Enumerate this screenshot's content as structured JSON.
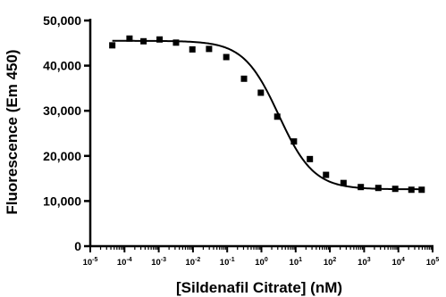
{
  "chart_data": {
    "type": "scatter",
    "title": "",
    "xlabel": "[Sildenafil Citrate] (nM)",
    "ylabel": "Fluorescence (Em 450)",
    "xscale": "log",
    "xlim": [
      1e-05,
      100000
    ],
    "ylim": [
      0,
      50000
    ],
    "x_ticks": [
      {
        "value": 1e-05,
        "base": "10",
        "exp": "-5"
      },
      {
        "value": 0.0001,
        "base": "10",
        "exp": "-4"
      },
      {
        "value": 0.001,
        "base": "10",
        "exp": "-3"
      },
      {
        "value": 0.01,
        "base": "10",
        "exp": "-2"
      },
      {
        "value": 0.1,
        "base": "10",
        "exp": "-1"
      },
      {
        "value": 1,
        "base": "10",
        "exp": "0"
      },
      {
        "value": 10,
        "base": "10",
        "exp": "1"
      },
      {
        "value": 100,
        "base": "10",
        "exp": "2"
      },
      {
        "value": 1000,
        "base": "10",
        "exp": "3"
      },
      {
        "value": 10000,
        "base": "10",
        "exp": "4"
      },
      {
        "value": 100000,
        "base": "10",
        "exp": "5"
      }
    ],
    "y_ticks": [
      {
        "value": 0,
        "label": "0"
      },
      {
        "value": 10000,
        "label": "10,000"
      },
      {
        "value": 20000,
        "label": "20,000"
      },
      {
        "value": 30000,
        "label": "30,000"
      },
      {
        "value": 40000,
        "label": "40,000"
      },
      {
        "value": 50000,
        "label": "50,000"
      }
    ],
    "grid": false,
    "marker": "square",
    "color": "#000000",
    "points": [
      {
        "x": 4.4e-05,
        "y": 44500
      },
      {
        "x": 0.00014,
        "y": 46000
      },
      {
        "x": 0.00036,
        "y": 45400
      },
      {
        "x": 0.00106,
        "y": 45800
      },
      {
        "x": 0.0032,
        "y": 45100
      },
      {
        "x": 0.0096,
        "y": 43600
      },
      {
        "x": 0.0295,
        "y": 43700
      },
      {
        "x": 0.094,
        "y": 41900
      },
      {
        "x": 0.31,
        "y": 37100
      },
      {
        "x": 0.96,
        "y": 34000
      },
      {
        "x": 2.9,
        "y": 28700
      },
      {
        "x": 8.9,
        "y": 23200
      },
      {
        "x": 26,
        "y": 19300
      },
      {
        "x": 77,
        "y": 15800
      },
      {
        "x": 250,
        "y": 14000
      },
      {
        "x": 800,
        "y": 13100
      },
      {
        "x": 2600,
        "y": 12900
      },
      {
        "x": 8100,
        "y": 12700
      },
      {
        "x": 24000,
        "y": 12500
      },
      {
        "x": 48000,
        "y": 12500
      }
    ],
    "fit": {
      "model": "four-parameter-logistic",
      "top": 45500,
      "bottom": 12600,
      "ec50": 3.2,
      "hill": 0.85
    }
  }
}
